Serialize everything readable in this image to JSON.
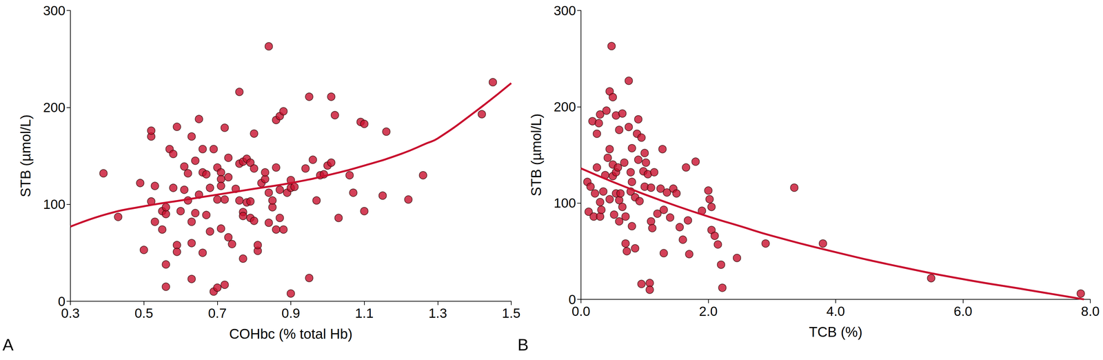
{
  "chart_data": [
    {
      "type": "scatter",
      "annotations": [
        "A"
      ],
      "x_label": "COHbc (% total Hb)",
      "y_label": "STB (µmol/L)",
      "xlim": [
        0.3,
        1.5
      ],
      "xticks": [
        0.3,
        0.5,
        0.7,
        0.9,
        1.1,
        1.3,
        1.5
      ],
      "ylim": [
        0,
        300
      ],
      "yticks": [
        0,
        100,
        200,
        300
      ],
      "grid": false,
      "series": [
        {
          "type": "scatter",
          "marker": "circle",
          "color": "#c8102e",
          "x": [
            0.39,
            0.43,
            0.49,
            0.5,
            0.52,
            0.52,
            0.52,
            0.53,
            0.53,
            0.55,
            0.55,
            0.56,
            0.56,
            0.56,
            0.56,
            0.57,
            0.58,
            0.58,
            0.59,
            0.59,
            0.59,
            0.6,
            0.61,
            0.61,
            0.62,
            0.62,
            0.63,
            0.63,
            0.63,
            0.63,
            0.64,
            0.64,
            0.65,
            0.65,
            0.66,
            0.66,
            0.66,
            0.67,
            0.67,
            0.68,
            0.68,
            0.69,
            0.69,
            0.7,
            0.7,
            0.7,
            0.71,
            0.71,
            0.71,
            0.71,
            0.72,
            0.72,
            0.72,
            0.73,
            0.73,
            0.73,
            0.74,
            0.75,
            0.76,
            0.76,
            0.76,
            0.77,
            0.77,
            0.77,
            0.77,
            0.78,
            0.78,
            0.79,
            0.79,
            0.79,
            0.8,
            0.8,
            0.8,
            0.81,
            0.81,
            0.82,
            0.83,
            0.83,
            0.84,
            0.84,
            0.84,
            0.85,
            0.85,
            0.86,
            0.86,
            0.86,
            0.87,
            0.87,
            0.87,
            0.88,
            0.88,
            0.89,
            0.9,
            0.9,
            0.9,
            0.91,
            0.94,
            0.95,
            0.95,
            0.96,
            0.97,
            0.98,
            0.99,
            1.0,
            1.01,
            1.01,
            1.02,
            1.03,
            1.06,
            1.07,
            1.09,
            1.1,
            1.1,
            1.15,
            1.16,
            1.22,
            1.26,
            1.42,
            1.45
          ],
          "values": [
            132,
            87,
            122,
            53,
            103,
            170,
            176,
            119,
            82,
            93,
            74,
            15,
            38,
            90,
            97,
            157,
            152,
            117,
            180,
            58,
            51,
            93,
            115,
            139,
            132,
            104,
            82,
            60,
            23,
            170,
            145,
            91,
            188,
            110,
            50,
            157,
            133,
            89,
            131,
            117,
            72,
            157,
            10,
            138,
            105,
            14,
            133,
            126,
            119,
            75,
            17,
            179,
            105,
            148,
            128,
            66,
            59,
            116,
            216,
            142,
            104,
            144,
            92,
            44,
            88,
            147,
            102,
            86,
            143,
            103,
            137,
            173,
            83,
            52,
            58,
            122,
            126,
            133,
            112,
            263,
            81,
            97,
            104,
            138,
            187,
            74,
            115,
            86,
            191,
            196,
            74,
            112,
            117,
            125,
            8,
            118,
            137,
            211,
            24,
            146,
            104,
            130,
            131,
            140,
            143,
            211,
            192,
            86,
            130,
            112,
            185,
            183,
            93,
            109,
            175,
            105,
            130,
            193,
            226
          ]
        },
        {
          "type": "line",
          "line_style": "solid",
          "color": "#c8102e",
          "x": [
            0.3,
            0.4,
            0.5,
            0.6,
            0.7,
            0.8,
            0.9,
            1.0,
            1.1,
            1.2,
            1.27,
            1.3,
            1.4,
            1.5
          ],
          "values": [
            77,
            90,
            98,
            104,
            110,
            116,
            122,
            130,
            140,
            152,
            163,
            168,
            195,
            225
          ]
        }
      ]
    },
    {
      "type": "scatter",
      "annotations": [
        "B"
      ],
      "x_label": "TCB (%)",
      "y_label": "STB (µmol/L)",
      "xlim": [
        0,
        8
      ],
      "xticks": [
        {
          "value": 0,
          "label": "0.0"
        },
        {
          "value": 2,
          "label": "2.0"
        },
        {
          "value": 4,
          "label": "4.0"
        },
        {
          "value": 6,
          "label": "6.0"
        },
        {
          "value": 8,
          "label": "8.0"
        }
      ],
      "ylim": [
        0,
        300
      ],
      "yticks": [
        0,
        100,
        200,
        300
      ],
      "grid": false,
      "series": [
        {
          "type": "scatter",
          "marker": "circle",
          "color": "#c8102e",
          "x": [
            0.1,
            0.12,
            0.15,
            0.18,
            0.2,
            0.22,
            0.25,
            0.25,
            0.28,
            0.3,
            0.3,
            0.3,
            0.32,
            0.35,
            0.38,
            0.4,
            0.42,
            0.45,
            0.45,
            0.45,
            0.48,
            0.5,
            0.5,
            0.5,
            0.52,
            0.55,
            0.55,
            0.55,
            0.58,
            0.6,
            0.6,
            0.6,
            0.62,
            0.65,
            0.65,
            0.68,
            0.7,
            0.7,
            0.72,
            0.75,
            0.75,
            0.78,
            0.78,
            0.8,
            0.8,
            0.8,
            0.85,
            0.85,
            0.88,
            0.9,
            0.9,
            0.92,
            0.95,
            0.95,
            0.98,
            1.0,
            1.0,
            1.02,
            1.05,
            1.08,
            1.08,
            1.1,
            1.1,
            1.12,
            1.15,
            1.2,
            1.25,
            1.28,
            1.3,
            1.3,
            1.35,
            1.4,
            1.45,
            1.5,
            1.55,
            1.6,
            1.65,
            1.68,
            1.7,
            1.8,
            1.9,
            2.0,
            2.02,
            2.05,
            2.05,
            2.1,
            2.15,
            2.2,
            2.22,
            2.45,
            2.9,
            3.35,
            3.8,
            5.5,
            7.85
          ],
          "values": [
            122,
            91,
            117,
            185,
            86,
            110,
            137,
            172,
            183,
            192,
            101,
            86,
            93,
            112,
            129,
            196,
            147,
            216,
            156,
            104,
            263,
            210,
            140,
            128,
            88,
            191,
            132,
            110,
            137,
            176,
            103,
            81,
            110,
            96,
            193,
            142,
            58,
            86,
            50,
            227,
            179,
            132,
            112,
            157,
            122,
            76,
            106,
            53,
            172,
            187,
            145,
            102,
            16,
            168,
            133,
            117,
            152,
            142,
            130,
            17,
            10,
            116,
            81,
            74,
            132,
            89,
            115,
            156,
            48,
            93,
            111,
            85,
            115,
            110,
            75,
            62,
            137,
            82,
            47,
            143,
            92,
            113,
            104,
            96,
            72,
            66,
            57,
            36,
            12,
            43,
            58,
            116,
            58,
            22,
            6
          ]
        },
        {
          "type": "line",
          "line_style": "solid",
          "color": "#c8102e",
          "x": [
            0,
            0.5,
            1,
            1.5,
            2,
            2.5,
            3,
            4,
            5,
            6,
            7,
            7.9
          ],
          "values": [
            136,
            122,
            109,
            97,
            86,
            76,
            66,
            49,
            34,
            21,
            10,
            0
          ]
        }
      ]
    }
  ]
}
